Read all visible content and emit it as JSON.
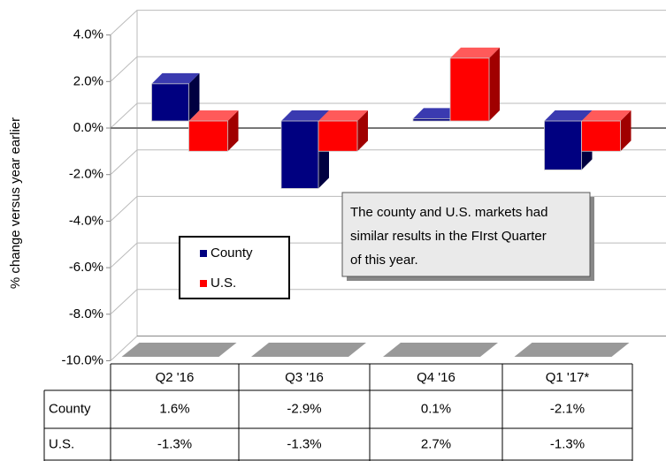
{
  "chart_data": {
    "type": "bar3d",
    "y_axis_label": "% change versus year earlier",
    "categories": [
      "Q2 '16",
      "Q3 '16",
      "Q4 '16",
      "Q1 '17*"
    ],
    "series": [
      {
        "name": "County",
        "color": "#000080",
        "values": [
          1.6,
          -2.9,
          0.1,
          -2.1
        ],
        "value_labels": [
          "1.6%",
          "-2.9%",
          "0.1%",
          "-2.1%"
        ]
      },
      {
        "name": "U.S.",
        "color": "#ff0000",
        "values": [
          -1.3,
          -1.3,
          2.7,
          -1.3
        ],
        "value_labels": [
          "-1.3%",
          "-1.3%",
          "2.7%",
          "-1.3%"
        ]
      }
    ],
    "ylim": [
      -10,
      4
    ],
    "yticks": [
      {
        "value": -10,
        "label": "-10.0%"
      },
      {
        "value": -8,
        "label": "-8.0%"
      },
      {
        "value": -6,
        "label": "-6.0%"
      },
      {
        "value": -4,
        "label": "-4.0%"
      },
      {
        "value": -2,
        "label": "-2.0%"
      },
      {
        "value": 0,
        "label": "0.0%"
      },
      {
        "value": 2,
        "label": "2.0%"
      },
      {
        "value": 4,
        "label": "4.0%"
      }
    ],
    "annotation": [
      "The county and U.S. markets had",
      "similar results in the FIrst Quarter",
      "of this year."
    ],
    "grid": true
  }
}
